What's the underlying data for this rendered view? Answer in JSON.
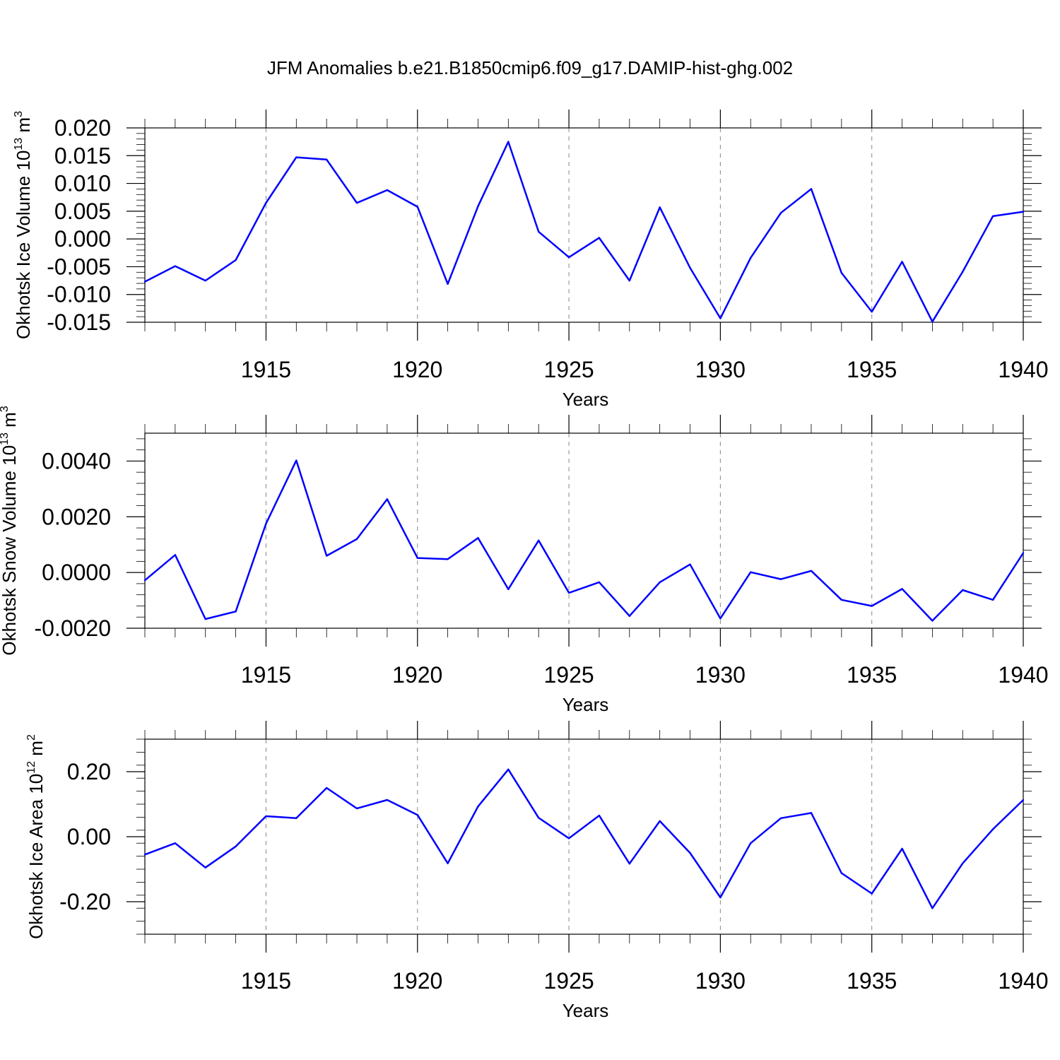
{
  "title": "JFM Anomalies b.e21.B1850cmip6.f09_g17.DAMIP-hist-ghg.002",
  "colors": {
    "series": "#0000ff",
    "frame": "#000000",
    "grid": "#888888"
  },
  "chart_data": [
    {
      "type": "line",
      "ylabel": {
        "text": "Okhotsk Ice Volume 10",
        "sup": "13",
        "unit": "m",
        "unit_sup": "3"
      },
      "xlabel": "Years",
      "xlim": [
        1911,
        1940
      ],
      "ylim": [
        -0.015,
        0.02
      ],
      "yticks": [
        -0.015,
        -0.01,
        -0.005,
        0.0,
        0.005,
        0.01,
        0.015,
        0.02
      ],
      "ytick_labels": [
        "-0.015",
        "-0.010",
        "-0.005",
        "0.000",
        "0.005",
        "0.010",
        "0.015",
        "0.020"
      ],
      "xticks": [
        1915,
        1920,
        1925,
        1930,
        1935,
        1940
      ],
      "xtick_labels": [
        "1915",
        "1920",
        "1925",
        "1930",
        "1935",
        "1940"
      ],
      "grid": "vertical dashed at major x ticks",
      "x": [
        1911,
        1912,
        1913,
        1914,
        1915,
        1916,
        1917,
        1918,
        1919,
        1920,
        1921,
        1922,
        1923,
        1924,
        1925,
        1926,
        1927,
        1928,
        1929,
        1930,
        1931,
        1932,
        1933,
        1934,
        1935,
        1936,
        1937,
        1938,
        1939,
        1940
      ],
      "values": [
        -0.0077,
        -0.0049,
        -0.0075,
        -0.0038,
        0.0065,
        0.0147,
        0.0143,
        0.0065,
        0.0088,
        0.0058,
        -0.0081,
        0.0059,
        0.0175,
        0.0013,
        -0.0033,
        0.0002,
        -0.0075,
        0.0057,
        -0.0052,
        -0.0143,
        -0.0034,
        0.0047,
        0.009,
        -0.0061,
        -0.0131,
        -0.0041,
        -0.0149,
        -0.0059,
        0.0041,
        0.0049
      ]
    },
    {
      "type": "line",
      "ylabel": {
        "text": "Okhotsk Snow Volume 10",
        "sup": "13",
        "unit": "m",
        "unit_sup": "3"
      },
      "xlabel": "Years",
      "xlim": [
        1911,
        1940
      ],
      "ylim": [
        -0.002,
        0.005
      ],
      "yticks": [
        -0.002,
        0.0,
        0.002,
        0.004
      ],
      "ytick_labels": [
        "-0.0020",
        "0.0000",
        "0.0020",
        "0.0040"
      ],
      "xticks": [
        1915,
        1920,
        1925,
        1930,
        1935,
        1940
      ],
      "xtick_labels": [
        "1915",
        "1920",
        "1925",
        "1930",
        "1935",
        "1940"
      ],
      "grid": "vertical dashed at major x ticks",
      "x": [
        1911,
        1912,
        1913,
        1914,
        1915,
        1916,
        1917,
        1918,
        1919,
        1920,
        1921,
        1922,
        1923,
        1924,
        1925,
        1926,
        1927,
        1928,
        1929,
        1930,
        1931,
        1932,
        1933,
        1934,
        1935,
        1936,
        1937,
        1938,
        1939,
        1940
      ],
      "values": [
        -0.00028,
        0.00063,
        -0.00167,
        -0.0014,
        0.00175,
        0.00402,
        0.0006,
        0.0012,
        0.00263,
        0.00052,
        0.00048,
        0.00124,
        -0.0006,
        0.00115,
        -0.00073,
        -0.00035,
        -0.00156,
        -0.00035,
        0.00029,
        -0.00165,
        1e-05,
        -0.00024,
        6e-05,
        -0.00098,
        -0.0012,
        -0.00059,
        -0.00173,
        -0.00063,
        -0.00098,
        0.0007
      ]
    },
    {
      "type": "line",
      "ylabel": {
        "text": "Okhotsk Ice Area 10",
        "sup": "12",
        "unit": "m",
        "unit_sup": "2"
      },
      "xlabel": "Years",
      "xlim": [
        1911,
        1940
      ],
      "ylim": [
        -0.3,
        0.3
      ],
      "yticks": [
        -0.2,
        0.0,
        0.2
      ],
      "ytick_labels": [
        "-0.20",
        "0.00",
        "0.20"
      ],
      "xticks": [
        1915,
        1920,
        1925,
        1930,
        1935,
        1940
      ],
      "xtick_labels": [
        "1915",
        "1920",
        "1925",
        "1930",
        "1935",
        "1940"
      ],
      "grid": "vertical dashed at major x ticks",
      "x": [
        1911,
        1912,
        1913,
        1914,
        1915,
        1916,
        1917,
        1918,
        1919,
        1920,
        1921,
        1922,
        1923,
        1924,
        1925,
        1926,
        1927,
        1928,
        1929,
        1930,
        1931,
        1932,
        1933,
        1934,
        1935,
        1936,
        1937,
        1938,
        1939,
        1940
      ],
      "values": [
        -0.055,
        -0.02,
        -0.095,
        -0.03,
        0.063,
        0.057,
        0.15,
        0.087,
        0.113,
        0.067,
        -0.082,
        0.093,
        0.207,
        0.058,
        -0.005,
        0.065,
        -0.083,
        0.048,
        -0.05,
        -0.187,
        -0.02,
        0.057,
        0.073,
        -0.112,
        -0.175,
        -0.037,
        -0.22,
        -0.082,
        0.023,
        0.113
      ]
    }
  ]
}
